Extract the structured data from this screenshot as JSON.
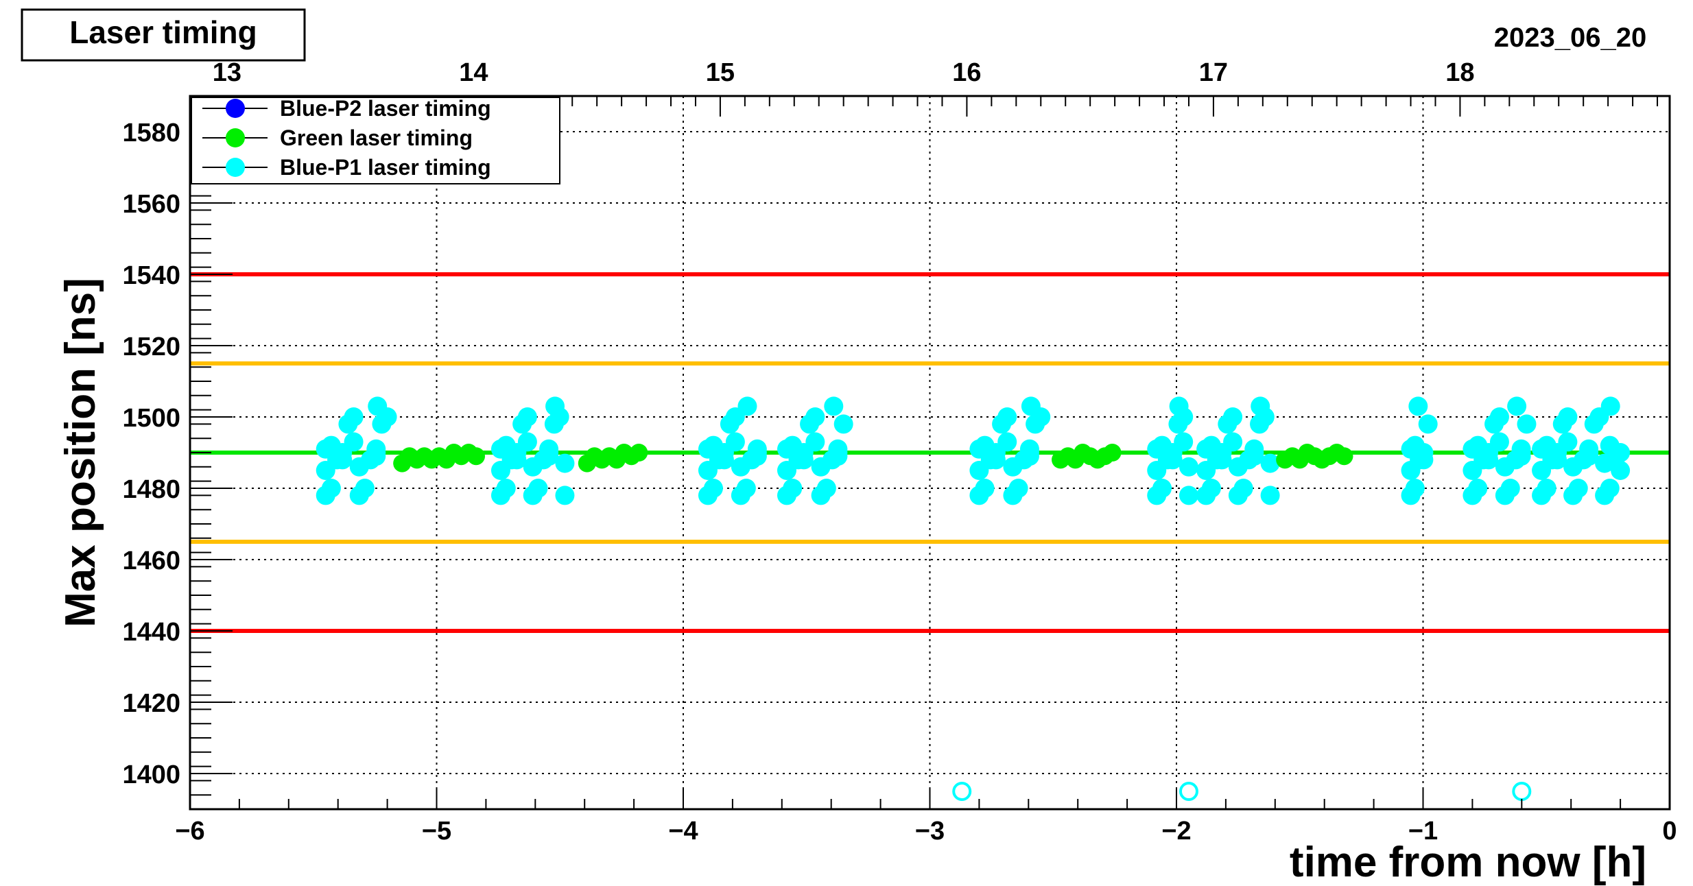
{
  "chart_data": {
    "type": "scatter",
    "title": "Laser timing",
    "date_label": "2023_06_20",
    "xlabel": "time from now [h]",
    "ylabel": "Max position [ns]",
    "xlim": [
      -6,
      0
    ],
    "ylim": [
      1390,
      1590
    ],
    "x_ticks": [
      {
        "value": -6,
        "label": "−6"
      },
      {
        "value": -5,
        "label": "−5"
      },
      {
        "value": -4,
        "label": "−4"
      },
      {
        "value": -3,
        "label": "−3"
      },
      {
        "value": -2,
        "label": "−2"
      },
      {
        "value": -1,
        "label": "−1"
      },
      {
        "value": 0,
        "label": "0"
      }
    ],
    "top_axis": {
      "ticks": [
        {
          "value": -5.85,
          "label": "13"
        },
        {
          "value": -4.85,
          "label": "14"
        },
        {
          "value": -3.85,
          "label": "15"
        },
        {
          "value": -2.85,
          "label": "16"
        },
        {
          "value": -1.85,
          "label": "17"
        },
        {
          "value": -0.85,
          "label": "18"
        }
      ]
    },
    "y_ticks": [
      {
        "value": 1400,
        "label": "1400"
      },
      {
        "value": 1420,
        "label": "1420"
      },
      {
        "value": 1440,
        "label": "1440"
      },
      {
        "value": 1460,
        "label": "1460"
      },
      {
        "value": 1480,
        "label": "1480"
      },
      {
        "value": 1500,
        "label": "1500"
      },
      {
        "value": 1520,
        "label": "1520"
      },
      {
        "value": 1540,
        "label": "1540"
      },
      {
        "value": 1560,
        "label": "1560"
      },
      {
        "value": 1580,
        "label": "1580"
      }
    ],
    "grid": true,
    "legend_position": "top-left",
    "reference_lines": [
      {
        "y": 1540,
        "color": "#ff0000"
      },
      {
        "y": 1440,
        "color": "#ff0000"
      },
      {
        "y": 1515,
        "color": "#ffbf00"
      },
      {
        "y": 1465,
        "color": "#ffbf00"
      },
      {
        "y": 1490,
        "color": "#00e600"
      }
    ],
    "series": [
      {
        "name": "Blue-P2 laser timing",
        "color": "#0000ff",
        "points": []
      },
      {
        "name": "Green laser timing",
        "color": "#00ee00",
        "points": [
          [
            -5.14,
            1487
          ],
          [
            -5.11,
            1489
          ],
          [
            -5.08,
            1488
          ],
          [
            -5.05,
            1489
          ],
          [
            -5.02,
            1488
          ],
          [
            -4.99,
            1489
          ],
          [
            -4.96,
            1488
          ],
          [
            -4.93,
            1490
          ],
          [
            -4.9,
            1489
          ],
          [
            -4.87,
            1490
          ],
          [
            -4.84,
            1489
          ],
          [
            -4.39,
            1487
          ],
          [
            -4.36,
            1489
          ],
          [
            -4.33,
            1488
          ],
          [
            -4.3,
            1489
          ],
          [
            -4.27,
            1488
          ],
          [
            -4.24,
            1490
          ],
          [
            -4.21,
            1489
          ],
          [
            -4.18,
            1490
          ],
          [
            -2.47,
            1488
          ],
          [
            -2.44,
            1489
          ],
          [
            -2.41,
            1488
          ],
          [
            -2.38,
            1490
          ],
          [
            -2.35,
            1489
          ],
          [
            -2.32,
            1488
          ],
          [
            -2.29,
            1489
          ],
          [
            -2.26,
            1490
          ],
          [
            -1.56,
            1488
          ],
          [
            -1.53,
            1489
          ],
          [
            -1.5,
            1488
          ],
          [
            -1.47,
            1490
          ],
          [
            -1.44,
            1489
          ],
          [
            -1.41,
            1488
          ],
          [
            -1.38,
            1489
          ],
          [
            -1.35,
            1490
          ],
          [
            -1.32,
            1489
          ]
        ]
      },
      {
        "name": "Blue-P1 laser timing",
        "color": "#00ffff",
        "clusters": [
          {
            "x_start": -5.45,
            "x_end": -5.2
          },
          {
            "x_start": -4.74,
            "x_end": -4.48
          },
          {
            "x_start": -3.9,
            "x_end": -3.7
          },
          {
            "x_start": -3.58,
            "x_end": -3.35
          },
          {
            "x_start": -2.8,
            "x_end": -2.55
          },
          {
            "x_start": -2.08,
            "x_end": -1.95
          },
          {
            "x_start": -1.88,
            "x_end": -1.62
          },
          {
            "x_start": -1.05,
            "x_end": -0.98
          },
          {
            "x_start": -0.8,
            "x_end": -0.58
          },
          {
            "x_start": -0.52,
            "x_end": -0.2
          }
        ],
        "points": [],
        "outliers": [
          [
            -2.87,
            1395
          ],
          [
            -1.95,
            1395
          ],
          [
            -0.6,
            1395
          ]
        ]
      }
    ]
  }
}
